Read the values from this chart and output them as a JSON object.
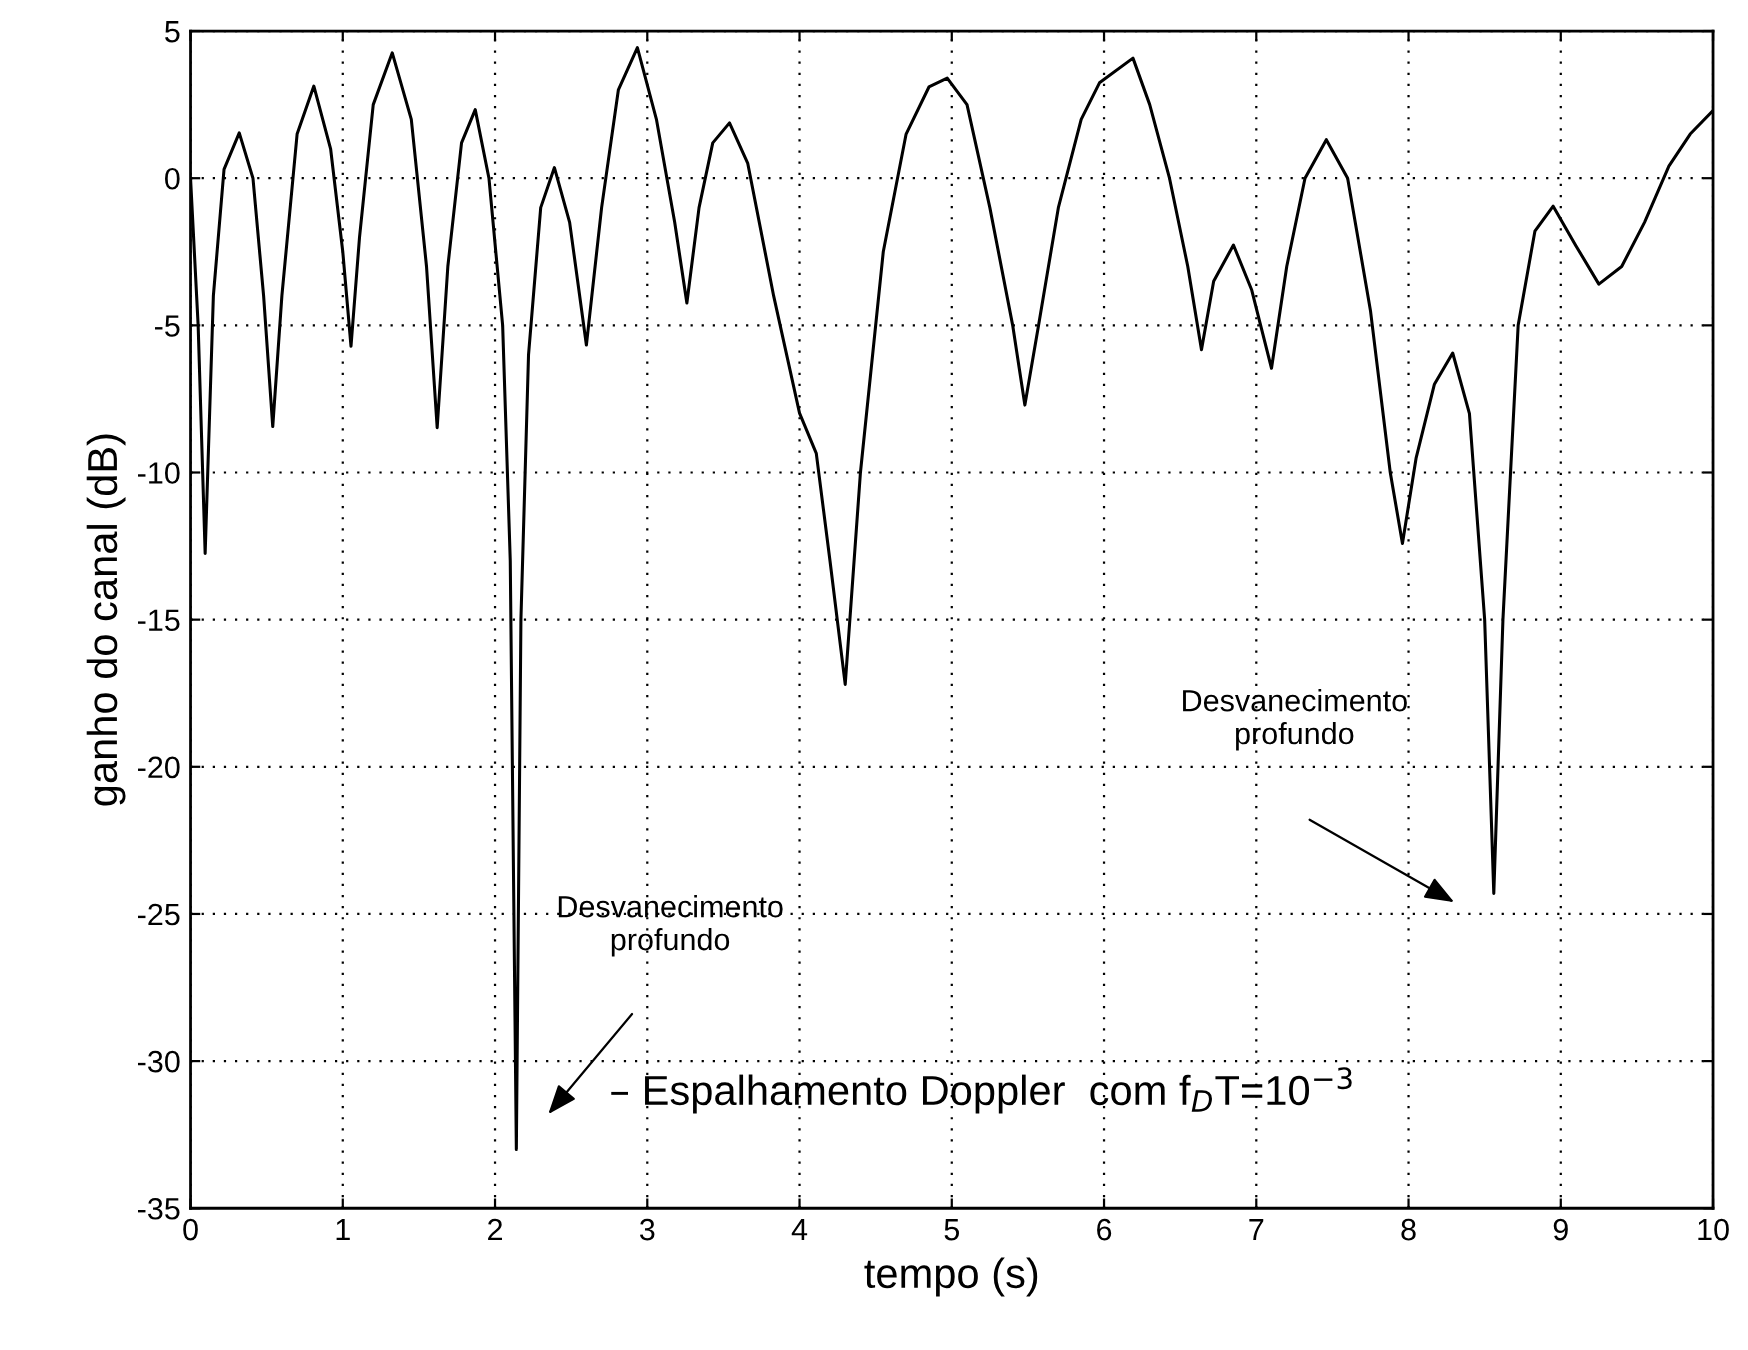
{
  "chart_data": {
    "type": "line",
    "xlabel": "tempo (s)",
    "ylabel": "ganho do canal (dB)",
    "x": [
      0,
      0.05,
      0.096,
      0.15,
      0.22,
      0.32,
      0.41,
      0.48,
      0.54,
      0.6,
      0.7,
      0.81,
      0.92,
      1.0,
      1.054,
      1.11,
      1.2,
      1.325,
      1.45,
      1.55,
      1.62,
      1.69,
      1.78,
      1.87,
      1.96,
      2.05,
      2.1,
      2.14,
      2.17,
      2.22,
      2.3,
      2.39,
      2.49,
      2.6,
      2.7,
      2.81,
      2.935,
      3.06,
      3.18,
      3.26,
      3.34,
      3.43,
      3.54,
      3.66,
      3.83,
      4.0,
      4.11,
      4.2,
      4.3,
      4.4,
      4.55,
      4.7,
      4.85,
      4.97,
      5.1,
      5.25,
      5.4,
      5.48,
      5.57,
      5.7,
      5.85,
      5.97,
      6.19,
      6.3,
      6.43,
      6.55,
      6.64,
      6.72,
      6.85,
      6.97,
      7.1,
      7.2,
      7.32,
      7.46,
      7.6,
      7.75,
      7.88,
      7.96,
      8.05,
      8.17,
      8.29,
      8.4,
      8.5,
      8.56,
      8.62,
      8.72,
      8.83,
      8.95,
      9.1,
      9.25,
      9.4,
      9.55,
      9.71,
      9.85,
      10
    ],
    "series": [
      {
        "color": "#000000",
        "values": [
          0,
          -5,
          -12.75,
          -4,
          0.3,
          1.54,
          0,
          -4,
          -8.44,
          -4,
          1.5,
          3.13,
          1,
          -2.5,
          -5.71,
          -2,
          2.5,
          4.26,
          2,
          -3,
          -8.48,
          -3,
          1.2,
          2.33,
          0,
          -5,
          -13,
          -33,
          -15,
          -6,
          -1,
          0.36,
          -1.5,
          -5.67,
          -1,
          3,
          4.44,
          2,
          -1.5,
          -4.24,
          -1,
          1.2,
          1.88,
          0.5,
          -4,
          -7.98,
          -9.35,
          -13,
          -17.2,
          -10,
          -2.5,
          1.5,
          3.1,
          3.4,
          2.5,
          -1,
          -5,
          -7.71,
          -5,
          -1,
          2,
          3.24,
          4.08,
          2.5,
          0,
          -3,
          -5.83,
          -3.5,
          -2.27,
          -3.8,
          -6.46,
          -3,
          0,
          1.31,
          0,
          -4.5,
          -10,
          -12.41,
          -9.5,
          -7,
          -5.94,
          -8,
          -15,
          -24.3,
          -15,
          -5,
          -1.8,
          -0.95,
          -2.3,
          -3.6,
          -3,
          -1.5,
          0.41,
          1.5,
          2.3
        ]
      }
    ],
    "xlim": [
      0,
      10
    ],
    "ylim": [
      -35,
      5
    ],
    "xticks": [
      0,
      1,
      2,
      3,
      4,
      5,
      6,
      7,
      8,
      9,
      10
    ],
    "yticks": [
      -35,
      -30,
      -25,
      -20,
      -15,
      -10,
      -5,
      0,
      5
    ],
    "grid": true,
    "marker": "none",
    "line_style": "solid",
    "annotations": [
      "Desvanecimento\nprofundo",
      "Desvanecimento\nprofundo",
      "– Espalhamento Doppler  com f$_{D}$T=10$^{−3}$"
    ]
  }
}
